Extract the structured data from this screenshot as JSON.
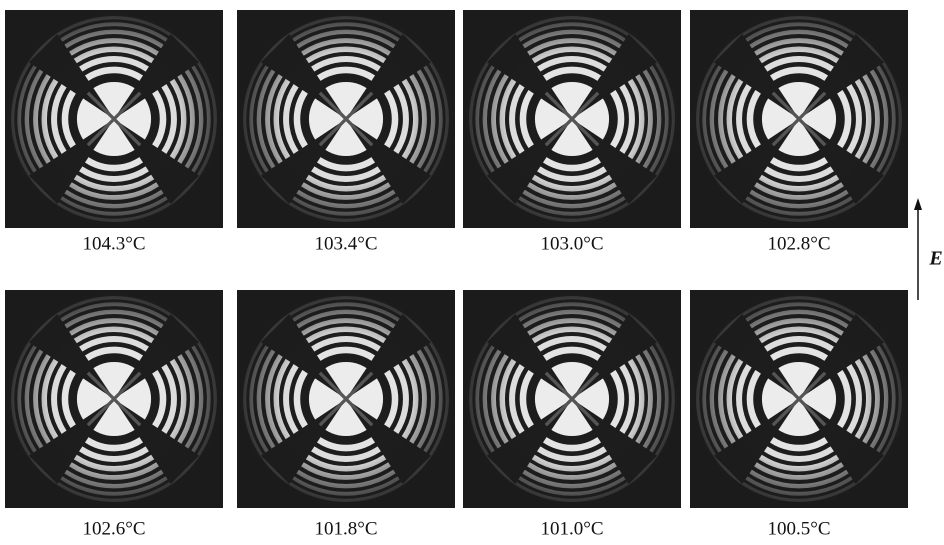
{
  "panels": [
    "104.3°C",
    "103.4°C",
    "103.0°C",
    "102.8°C",
    "102.6°C",
    "101.8°C",
    "101.0°C",
    "100.5°C"
  ],
  "field_label": "E"
}
